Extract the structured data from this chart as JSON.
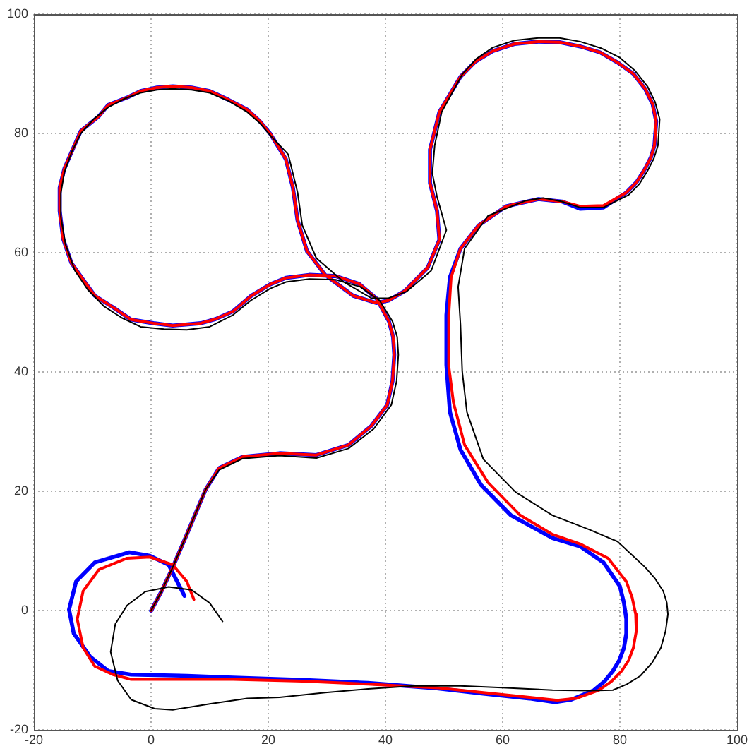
{
  "chart_data": {
    "type": "line",
    "xlim": [
      -20,
      100
    ],
    "ylim": [
      -20,
      100
    ],
    "xticks": [
      -20,
      0,
      20,
      40,
      60,
      80,
      100
    ],
    "yticks": [
      -20,
      0,
      20,
      40,
      60,
      80,
      100
    ],
    "grid": true,
    "marker": "none",
    "line_style": "solid",
    "series": [
      {
        "color": "#0000ff",
        "x": [
          0,
          1.8,
          3.7,
          6.1,
          8.1,
          9.3,
          11.6,
          15.6,
          21.9,
          28.2,
          33.7,
          37.6,
          40.3,
          41.2,
          41.5,
          41.3,
          40.6,
          38.5,
          35.5,
          31.5,
          27,
          23,
          20.3,
          17.1,
          14,
          11,
          8.5,
          3.7,
          0.4,
          -3.4,
          -6.4,
          -9.6,
          -11.6,
          -13.6,
          -15,
          -15.6,
          -15.6,
          -14.8,
          -13.3,
          -12,
          -8.9,
          -7.3,
          -3.9,
          -1.8,
          1,
          3.7,
          6.9,
          10,
          13.1,
          16.4,
          18.5,
          20.3,
          23,
          24.2,
          25,
          26.6,
          29.7,
          34.5,
          38.4,
          40.5,
          43.3,
          47.2,
          49.2,
          48.8,
          47.6,
          47.6,
          49.2,
          52.8,
          55.3,
          58.3,
          62,
          66.1,
          69.7,
          73.2,
          76.6,
          79.6,
          82.3,
          84.3,
          85.6,
          86.2,
          85.9,
          85.3,
          84.3,
          82.9,
          81.1,
          77.2,
          73.2,
          70.1,
          66.1,
          60.6,
          55.9,
          52.8,
          51,
          50.4,
          50.4,
          51,
          52.8,
          56.3,
          61.4,
          68.5,
          73.2,
          77.2,
          80,
          80.7,
          81.1,
          81.1,
          80.7,
          79.9,
          78.8,
          77.3,
          75.6,
          71.7,
          68.9,
          64.6,
          56.7,
          48.8,
          40.9,
          37,
          25.8,
          14,
          6.1,
          -3.4,
          -7.3,
          -10.4,
          -13.2,
          -14,
          -12.8,
          -9.6,
          -3.7,
          -0.2,
          3,
          5.7
        ],
        "values": [
          0,
          3.3,
          7.3,
          12.8,
          17.5,
          20.3,
          23.9,
          25.8,
          26.4,
          26.1,
          27.8,
          31,
          34.5,
          38.5,
          42.9,
          45.9,
          48.5,
          52.3,
          54.8,
          56.1,
          56.3,
          55.8,
          54.7,
          52.8,
          50.2,
          48.9,
          48.2,
          47.8,
          48.2,
          48.8,
          50.8,
          52.8,
          55.5,
          58.3,
          62.3,
          67,
          70.9,
          74.1,
          77.5,
          80.4,
          82.9,
          84.8,
          86.1,
          87.1,
          87.7,
          87.9,
          87.7,
          87.1,
          85.7,
          84,
          82.1,
          80,
          75.7,
          70.9,
          65.4,
          60.3,
          56.3,
          52.8,
          51.6,
          52,
          53.6,
          57.5,
          62.2,
          67,
          71.7,
          77.3,
          83.6,
          89.5,
          92,
          93.8,
          95,
          95.4,
          95.3,
          94.6,
          93.6,
          91.9,
          90,
          87.5,
          84.9,
          82,
          78,
          76,
          74.1,
          71.9,
          70.1,
          67.6,
          67.4,
          68.6,
          69,
          67.8,
          64.6,
          60.7,
          55.9,
          49.6,
          41.2,
          33.3,
          27,
          21.1,
          16,
          12.2,
          10.8,
          8.1,
          4.1,
          1.3,
          -1.4,
          -3.8,
          -6.2,
          -8.3,
          -10.1,
          -11.9,
          -13.3,
          -14.9,
          -15.3,
          -14.7,
          -13.9,
          -13,
          -12.4,
          -12.1,
          -11.6,
          -11.2,
          -10.9,
          -10.7,
          -10.1,
          -7.7,
          -3.8,
          0.2,
          4.9,
          8.1,
          9.8,
          9.2,
          7.7,
          2.5
        ]
      },
      {
        "color": "#ff0000",
        "x": [
          0,
          1.8,
          3.7,
          6.1,
          8.1,
          9.3,
          11.6,
          15.6,
          21.9,
          28.2,
          33.7,
          37.6,
          40.3,
          41.2,
          41.5,
          41.3,
          40.6,
          38.5,
          35.5,
          31.5,
          27,
          23,
          20.3,
          17.1,
          14,
          11,
          8.5,
          3.7,
          0.4,
          -3.4,
          -6.4,
          -9.6,
          -11.6,
          -13.6,
          -15,
          -15.6,
          -15.6,
          -14.8,
          -13.3,
          -12,
          -8.9,
          -7.3,
          -3.9,
          -1.8,
          1,
          3.7,
          6.9,
          10,
          13.1,
          16.4,
          18.5,
          20.3,
          23,
          24.2,
          25,
          26.6,
          29.7,
          34.5,
          38.4,
          40.5,
          43.3,
          47.2,
          49.2,
          48.8,
          47.6,
          47.6,
          49.2,
          52.8,
          55.3,
          58.3,
          62,
          66.1,
          69.7,
          73.2,
          76.6,
          79.6,
          82.3,
          84.3,
          85.6,
          86.2,
          85.9,
          85.3,
          84.3,
          82.9,
          81.1,
          77.2,
          73.2,
          70.1,
          66.1,
          60.6,
          55.9,
          52.8,
          51.2,
          50.8,
          50.8,
          51.6,
          53.5,
          57.5,
          63,
          68.5,
          73.2,
          78,
          81.1,
          82.1,
          82.7,
          82.8,
          82.3,
          81.5,
          80.3,
          78.5,
          76.4,
          72.5,
          69.3,
          64.6,
          56.7,
          48.8,
          40.9,
          37,
          25.8,
          14,
          6.1,
          -3.4,
          -6.5,
          -9.6,
          -11.6,
          -12.6,
          -11.6,
          -8.9,
          -4.1,
          -0.2,
          3.7,
          6.1,
          7.3
        ],
        "values": [
          0,
          3.3,
          7.3,
          12.8,
          17.5,
          20.3,
          23.9,
          25.8,
          26.4,
          26.1,
          27.8,
          31,
          34.5,
          38.5,
          42.9,
          45.9,
          48.5,
          52.3,
          54.8,
          56.1,
          56.3,
          55.8,
          54.7,
          52.8,
          50.2,
          48.9,
          48.2,
          47.8,
          48.2,
          48.8,
          50.8,
          52.8,
          55.5,
          58.3,
          62.3,
          67,
          70.9,
          74.1,
          77.5,
          80.4,
          82.9,
          84.8,
          86.1,
          87.1,
          87.7,
          87.9,
          87.7,
          87.1,
          85.7,
          84,
          82.1,
          80,
          75.7,
          70.9,
          65.4,
          60.3,
          56.3,
          52.8,
          51.6,
          52,
          53.6,
          57.5,
          62.2,
          67,
          71.7,
          77.3,
          83.6,
          89.5,
          92,
          93.8,
          95,
          95.4,
          95.3,
          94.6,
          93.6,
          91.9,
          90,
          87.5,
          84.9,
          82,
          78,
          76,
          74.1,
          71.9,
          70.1,
          67.9,
          67.8,
          68.6,
          69,
          67.8,
          64.6,
          60.7,
          55.9,
          49.6,
          41,
          34.9,
          27.8,
          21.5,
          16,
          12.8,
          11.2,
          8.8,
          4.9,
          2.2,
          -0.6,
          -3.4,
          -6.2,
          -8.3,
          -10.1,
          -11.9,
          -13.3,
          -14.7,
          -15,
          -14.5,
          -13.7,
          -12.9,
          -12.5,
          -12.3,
          -11.8,
          -11.5,
          -11.5,
          -11.5,
          -10.7,
          -9.3,
          -6.2,
          -1.4,
          3.3,
          6.9,
          8.8,
          9,
          7.7,
          4.9,
          1.9
        ]
      },
      {
        "color": "#000000",
        "x": [
          0,
          1.8,
          3.7,
          6.1,
          8.1,
          9.3,
          11.6,
          15.6,
          21.9,
          28.2,
          33.7,
          38,
          41,
          41.9,
          42.2,
          42,
          41.2,
          39,
          35.7,
          31.5,
          27,
          23,
          20.3,
          17,
          14,
          10,
          6.1,
          2.2,
          -1.8,
          -5,
          -8,
          -10.8,
          -13,
          -14.6,
          -15.4,
          -15.4,
          -14.8,
          -13.5,
          -12,
          -9.8,
          -7.3,
          -4.6,
          -1.8,
          1,
          3.7,
          6.9,
          10,
          13.3,
          16.4,
          18.6,
          20.5,
          23.4,
          25,
          25.8,
          28.2,
          32.9,
          37.6,
          40.5,
          43.6,
          47.8,
          50.4,
          48.8,
          48,
          48.4,
          49.6,
          53.1,
          55.5,
          58.3,
          62,
          66.1,
          69.7,
          73.2,
          76.8,
          80,
          82.6,
          84.7,
          86,
          86.8,
          86.5,
          85.8,
          84.7,
          83.3,
          81.5,
          77.2,
          73.2,
          70.1,
          66.9,
          63.8,
          57.5,
          53.5,
          52.4,
          52.8,
          53.1,
          53.9,
          56.7,
          62.2,
          68.5,
          74.8,
          79.6,
          84.3,
          86,
          87.4,
          88,
          88.2,
          87.8,
          87,
          85.5,
          83.5,
          81.2,
          78.8,
          74.8,
          68.5,
          60.6,
          52.8,
          44.9,
          37,
          29.7,
          21.9,
          16.4,
          10,
          3.7,
          0.6,
          -3.4,
          -5.7,
          -6.9,
          -6.1,
          -4.1,
          -1,
          3,
          6.9,
          10,
          12.2
        ],
        "values": [
          0,
          3.3,
          7.3,
          12.8,
          17.5,
          20.3,
          23.6,
          25.5,
          26,
          25.6,
          27.2,
          30.5,
          34.5,
          38.5,
          42.9,
          45.9,
          48.5,
          52,
          54.3,
          55.5,
          55.6,
          55.1,
          54,
          52,
          49.6,
          47.6,
          47.1,
          47.2,
          47.6,
          49.1,
          51,
          53.8,
          57,
          61.4,
          66,
          70,
          73.5,
          77,
          80,
          82.4,
          84.4,
          85.8,
          86.8,
          87.3,
          87.5,
          87.3,
          86.8,
          85.4,
          83.6,
          81.7,
          79.5,
          76.5,
          70.1,
          64.6,
          59.1,
          55.1,
          52.4,
          52.4,
          53.5,
          57,
          63.8,
          69.4,
          73.3,
          78,
          83.6,
          89.9,
          92.5,
          94.4,
          95.6,
          96,
          96,
          95.4,
          94.3,
          92.7,
          90.5,
          87.9,
          85.3,
          82.4,
          78,
          75.8,
          73.7,
          71.5,
          69.7,
          67.6,
          67.6,
          68.6,
          69.2,
          68.7,
          66.2,
          60.7,
          54.3,
          48,
          40.1,
          33.3,
          25.4,
          19.9,
          16,
          13.6,
          11.6,
          7.3,
          5.4,
          3.3,
          1.4,
          -0.6,
          -3.4,
          -6.2,
          -8.7,
          -10.9,
          -12.3,
          -13.3,
          -13.4,
          -13.3,
          -12.9,
          -12.6,
          -12.6,
          -13.1,
          -13.7,
          -14.5,
          -14.7,
          -15.6,
          -16.6,
          -16.4,
          -14.9,
          -11.7,
          -6.9,
          -2.2,
          0.9,
          3.2,
          4,
          3.5,
          1.3,
          -1.8
        ]
      }
    ]
  }
}
